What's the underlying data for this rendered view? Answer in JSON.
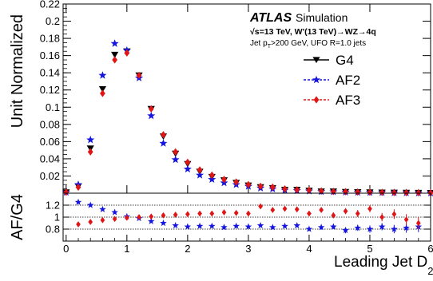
{
  "chart_data": [
    {
      "type": "scatter",
      "panel": "main",
      "ylabel": "Unit Normalized",
      "ylim": [
        0,
        0.22
      ],
      "yticks": [
        "0.02",
        "0.04",
        "0.06",
        "0.08",
        "0.1",
        "0.12",
        "0.14",
        "0.16",
        "0.18",
        "0.2",
        "0.22"
      ],
      "ytick_values": [
        0.02,
        0.04,
        0.06,
        0.08,
        0.1,
        0.12,
        0.14,
        0.16,
        0.18,
        0.2,
        0.22
      ],
      "xlim": [
        -0.05,
        6
      ],
      "annotations": {
        "atlas": "ATLAS",
        "simulation": "Simulation",
        "line1": "√s=13 TeV, W'(13 TeV)→WZ→4q",
        "line2": "Jet p",
        "line2_sub": "T",
        "line2_rest": ">200 GeV, UFO R=1.0 jets"
      },
      "legend_position": "top-right",
      "series": [
        {
          "name": "G4",
          "marker": "triangle-down",
          "color": "#000000",
          "x": [
            0,
            0.2,
            0.4,
            0.6,
            0.8,
            1.0,
            1.2,
            1.4,
            1.6,
            1.8,
            2.0,
            2.2,
            2.4,
            2.6,
            2.8,
            3.0,
            3.2,
            3.4,
            3.6,
            3.8,
            4.0,
            4.2,
            4.4,
            4.6,
            4.8,
            5.0,
            5.2,
            5.4,
            5.6,
            5.8,
            6.0
          ],
          "values": [
            0.001,
            0.008,
            0.052,
            0.121,
            0.161,
            0.165,
            0.137,
            0.098,
            0.066,
            0.046,
            0.034,
            0.025,
            0.019,
            0.015,
            0.012,
            0.009,
            0.007,
            0.006,
            0.004,
            0.004,
            0.003,
            0.002,
            0.002,
            0.0015,
            0.0012,
            0.001,
            0.0008,
            0.0006,
            0.0005,
            0.0004,
            0.0003
          ]
        },
        {
          "name": "AF2",
          "marker": "star",
          "color": "#1515e0",
          "x": [
            0,
            0.2,
            0.4,
            0.6,
            0.8,
            1.0,
            1.2,
            1.4,
            1.6,
            1.8,
            2.0,
            2.2,
            2.4,
            2.6,
            2.8,
            3.0,
            3.2,
            3.4,
            3.6,
            3.8,
            4.0,
            4.2,
            4.4,
            4.6,
            4.8,
            5.0,
            5.2,
            5.4,
            5.6,
            5.8,
            6.0
          ],
          "values": [
            0.001,
            0.01,
            0.062,
            0.137,
            0.174,
            0.166,
            0.134,
            0.09,
            0.058,
            0.039,
            0.028,
            0.021,
            0.016,
            0.012,
            0.01,
            0.008,
            0.006,
            0.005,
            0.0035,
            0.003,
            0.0025,
            0.0018,
            0.0016,
            0.0012,
            0.001,
            0.0008,
            0.0007,
            0.0005,
            0.0004,
            0.0003,
            0.0002
          ]
        },
        {
          "name": "AF3",
          "marker": "diamond",
          "color": "#e01515",
          "x": [
            0,
            0.2,
            0.4,
            0.6,
            0.8,
            1.0,
            1.2,
            1.4,
            1.6,
            1.8,
            2.0,
            2.2,
            2.4,
            2.6,
            2.8,
            3.0,
            3.2,
            3.4,
            3.6,
            3.8,
            4.0,
            4.2,
            4.4,
            4.6,
            4.8,
            5.0,
            5.2,
            5.4,
            5.6,
            5.8,
            6.0
          ],
          "values": [
            0.001,
            0.007,
            0.048,
            0.116,
            0.155,
            0.163,
            0.137,
            0.098,
            0.068,
            0.048,
            0.036,
            0.027,
            0.021,
            0.016,
            0.013,
            0.01,
            0.008,
            0.007,
            0.005,
            0.004,
            0.0035,
            0.0025,
            0.002,
            0.0017,
            0.0013,
            0.0011,
            0.0009,
            0.0007,
            0.0006,
            0.0005,
            0.0004
          ]
        }
      ]
    },
    {
      "type": "scatter",
      "panel": "ratio",
      "ylabel": "AF/G4",
      "xlabel": "Leading Jet D",
      "xlabel_sub": "2",
      "ylim": [
        0.6,
        1.4
      ],
      "yticks": [
        "0.8",
        "1",
        "1.2"
      ],
      "ytick_values": [
        0.8,
        1.0,
        1.2
      ],
      "xlim": [
        -0.05,
        6
      ],
      "xticks": [
        "0",
        "1",
        "2",
        "3",
        "4",
        "5",
        "6"
      ],
      "xtick_values": [
        0,
        1,
        2,
        3,
        4,
        5,
        6
      ],
      "reference_lines": [
        0.8,
        1.0,
        1.2
      ],
      "series": [
        {
          "name": "AF2",
          "marker": "star",
          "color": "#1515e0",
          "x": [
            0.2,
            0.4,
            0.6,
            0.8,
            1.0,
            1.2,
            1.4,
            1.6,
            1.8,
            2.0,
            2.2,
            2.4,
            2.6,
            2.8,
            3.0,
            3.2,
            3.4,
            3.6,
            3.8,
            4.0,
            4.2,
            4.4,
            4.6,
            4.8,
            5.0,
            5.2,
            5.4,
            5.6,
            5.8
          ],
          "values": [
            1.25,
            1.2,
            1.13,
            1.08,
            1.01,
            0.98,
            0.93,
            0.9,
            0.86,
            0.84,
            0.85,
            0.85,
            0.83,
            0.85,
            0.84,
            0.86,
            0.83,
            0.85,
            0.86,
            0.8,
            0.83,
            0.84,
            0.78,
            0.82,
            0.8,
            0.84,
            0.8,
            0.82,
            0.84
          ],
          "errors": [
            0.02,
            0.01,
            0.01,
            0.01,
            0.01,
            0.01,
            0.01,
            0.01,
            0.01,
            0.01,
            0.01,
            0.01,
            0.02,
            0.02,
            0.02,
            0.02,
            0.03,
            0.03,
            0.03,
            0.03,
            0.04,
            0.04,
            0.05,
            0.05,
            0.06,
            0.06,
            0.07,
            0.08,
            0.09
          ]
        },
        {
          "name": "AF3",
          "marker": "diamond",
          "color": "#e01515",
          "x": [
            0.2,
            0.4,
            0.6,
            0.8,
            1.0,
            1.2,
            1.4,
            1.6,
            1.8,
            2.0,
            2.2,
            2.4,
            2.6,
            2.8,
            3.0,
            3.2,
            3.4,
            3.6,
            3.8,
            4.0,
            4.2,
            4.4,
            4.6,
            4.8,
            5.0,
            5.2,
            5.4,
            5.6,
            5.8
          ],
          "values": [
            0.88,
            0.92,
            0.95,
            0.97,
            0.99,
            1.0,
            1.01,
            1.03,
            1.04,
            1.05,
            1.06,
            1.06,
            1.08,
            1.07,
            1.06,
            1.18,
            1.12,
            1.14,
            1.13,
            1.06,
            1.12,
            1.03,
            1.1,
            1.06,
            1.14,
            1.0,
            1.05,
            0.96,
            0.9
          ],
          "errors": [
            0.02,
            0.01,
            0.01,
            0.01,
            0.01,
            0.01,
            0.01,
            0.01,
            0.01,
            0.01,
            0.01,
            0.02,
            0.02,
            0.02,
            0.02,
            0.03,
            0.03,
            0.03,
            0.04,
            0.04,
            0.04,
            0.05,
            0.05,
            0.06,
            0.06,
            0.07,
            0.08,
            0.09,
            0.1
          ]
        }
      ]
    }
  ]
}
